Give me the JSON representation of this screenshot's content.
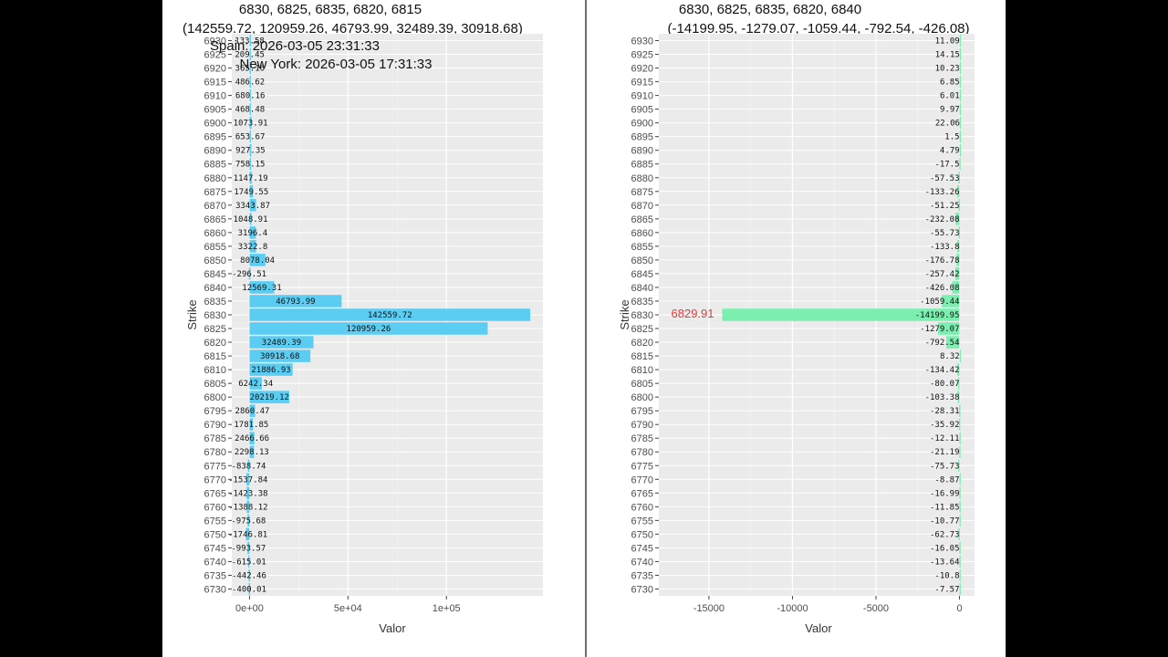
{
  "chart_data": [
    {
      "type": "bar",
      "orientation": "horizontal",
      "title_line1": "6830, 6825, 6835, 6820, 6815",
      "title_line2": "(142559.72, 120959.26, 46793.99, 32489.39, 30918.68)",
      "annotation_spain": "Spain: 2026-03-05 23:31:33",
      "annotation_newyork": "New York: 2026-03-05 17:31:33",
      "xlabel": "Valor",
      "ylabel": "Strike",
      "xlim": [
        -9000,
        149000
      ],
      "xticks": [
        {
          "value": 0,
          "label": "0e+00"
        },
        {
          "value": 50000,
          "label": "5e+04"
        },
        {
          "value": 100000,
          "label": "1e+05"
        }
      ],
      "bar_color": "#5bcdf2",
      "strikes": [
        6930,
        6925,
        6920,
        6915,
        6910,
        6905,
        6900,
        6895,
        6890,
        6885,
        6880,
        6875,
        6870,
        6865,
        6860,
        6855,
        6850,
        6845,
        6840,
        6835,
        6830,
        6825,
        6820,
        6815,
        6810,
        6805,
        6800,
        6795,
        6790,
        6785,
        6780,
        6775,
        6770,
        6765,
        6760,
        6755,
        6750,
        6745,
        6740,
        6735,
        6730
      ],
      "values": [
        133.58,
        209.45,
        365.16,
        486.62,
        680.16,
        468.48,
        1073.91,
        653.67,
        927.35,
        758.15,
        1147.19,
        1749.55,
        3343.87,
        1048.91,
        3196.4,
        3322.8,
        8078.04,
        -296.51,
        12569.31,
        46793.99,
        142559.72,
        120959.26,
        32489.39,
        30918.68,
        21886.93,
        6242.34,
        20219.12,
        2860.47,
        1781.85,
        2466.66,
        2298.13,
        -838.74,
        -1537.84,
        -1423.38,
        -1388.12,
        -975.68,
        -1746.81,
        -993.57,
        -615.01,
        -442.46,
        -400.01
      ]
    },
    {
      "type": "bar",
      "orientation": "horizontal",
      "title_line1": "6830, 6825, 6835, 6820, 6840",
      "title_line2": "(-14199.95, -1279.07, -1059.44, -792.54, -426.08)",
      "price_marker": "6829.91",
      "xlabel": "Valor",
      "ylabel": "Strike",
      "xlim": [
        -18000,
        900
      ],
      "xticks": [
        {
          "value": -15000,
          "label": "-15000"
        },
        {
          "value": -10000,
          "label": "-10000"
        },
        {
          "value": -5000,
          "label": "-5000"
        },
        {
          "value": 0,
          "label": "0"
        }
      ],
      "bar_color": "#7ceeb0",
      "strikes": [
        6930,
        6925,
        6920,
        6915,
        6910,
        6905,
        6900,
        6895,
        6890,
        6885,
        6880,
        6875,
        6870,
        6865,
        6860,
        6855,
        6850,
        6845,
        6840,
        6835,
        6830,
        6825,
        6820,
        6815,
        6810,
        6805,
        6800,
        6795,
        6790,
        6785,
        6780,
        6775,
        6770,
        6765,
        6760,
        6755,
        6750,
        6745,
        6740,
        6735,
        6730
      ],
      "values": [
        11.09,
        14.15,
        10.23,
        6.85,
        6.01,
        9.97,
        22.06,
        1.5,
        4.79,
        -17.5,
        -57.53,
        -133.26,
        -51.25,
        -232.08,
        -55.73,
        -133.8,
        -176.78,
        -257.42,
        -426.08,
        -1059.44,
        -14199.95,
        -1279.07,
        -792.54,
        8.32,
        -134.42,
        -80.07,
        -103.38,
        -28.31,
        -35.92,
        -12.11,
        -21.19,
        -75.73,
        -8.87,
        -16.99,
        -11.85,
        -10.77,
        -62.73,
        -16.05,
        -13.64,
        -10.8,
        -7.57
      ]
    }
  ]
}
